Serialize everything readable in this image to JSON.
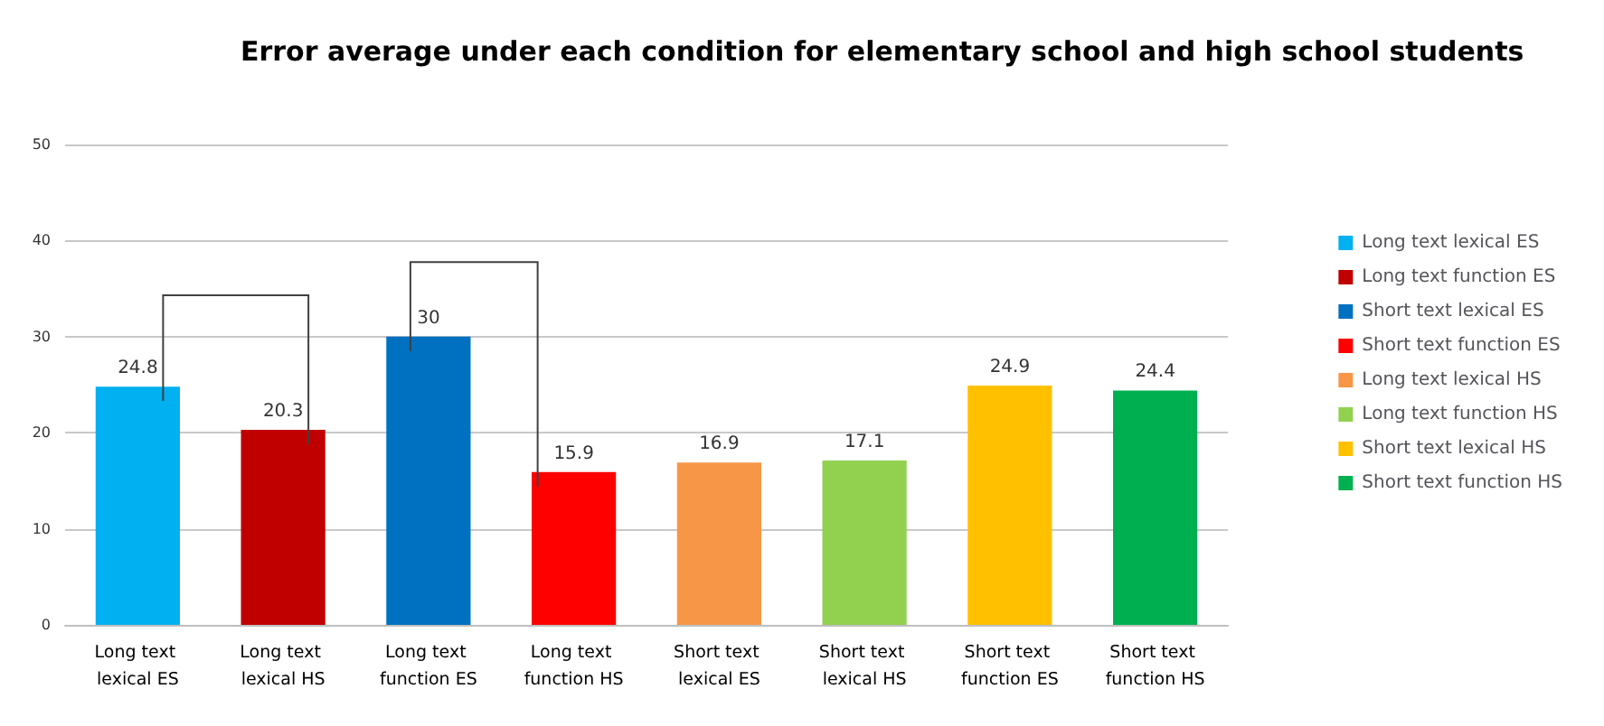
{
  "chart_data": {
    "type": "bar",
    "title": "Error average under each condition for elementary school and high school students",
    "categories": [
      "Long text lexical ES",
      "Long text lexical HS",
      "Long text function ES",
      "Long text function HS",
      "Short text lexical ES",
      "Short text lexical HS",
      "Short text function ES",
      "Short text function HS"
    ],
    "series": [
      {
        "name": "Long text lexical ES",
        "color": "#00b0f0",
        "values": [
          24.8,
          null,
          null,
          null,
          null,
          null,
          null,
          null
        ]
      },
      {
        "name": "Long text function ES",
        "color": "#c00000",
        "values": [
          null,
          20.3,
          null,
          null,
          null,
          null,
          null,
          null
        ]
      },
      {
        "name": "Short text lexical ES",
        "color": "#0070c0",
        "values": [
          null,
          null,
          30,
          null,
          null,
          null,
          null,
          null
        ]
      },
      {
        "name": "Short text function ES",
        "color": "#ff0000",
        "values": [
          null,
          null,
          null,
          15.9,
          null,
          null,
          null,
          null
        ]
      },
      {
        "name": "Long text lexical HS",
        "color": "#f79646",
        "values": [
          null,
          null,
          null,
          null,
          16.9,
          null,
          null,
          null
        ]
      },
      {
        "name": "Long text function HS",
        "color": "#92d050",
        "values": [
          null,
          null,
          null,
          null,
          null,
          17.1,
          null,
          null
        ]
      },
      {
        "name": "Short text lexical HS",
        "color": "#ffc000",
        "values": [
          null,
          null,
          null,
          null,
          null,
          null,
          24.9,
          null
        ]
      },
      {
        "name": "Short text function HS",
        "color": "#00b050",
        "values": [
          null,
          null,
          null,
          null,
          null,
          null,
          null,
          24.4
        ]
      }
    ],
    "ylim": [
      0,
      50
    ],
    "yticks": [
      0,
      10,
      20,
      30,
      40,
      50
    ],
    "grid": "y",
    "legend": "right",
    "data_labels": true
  }
}
